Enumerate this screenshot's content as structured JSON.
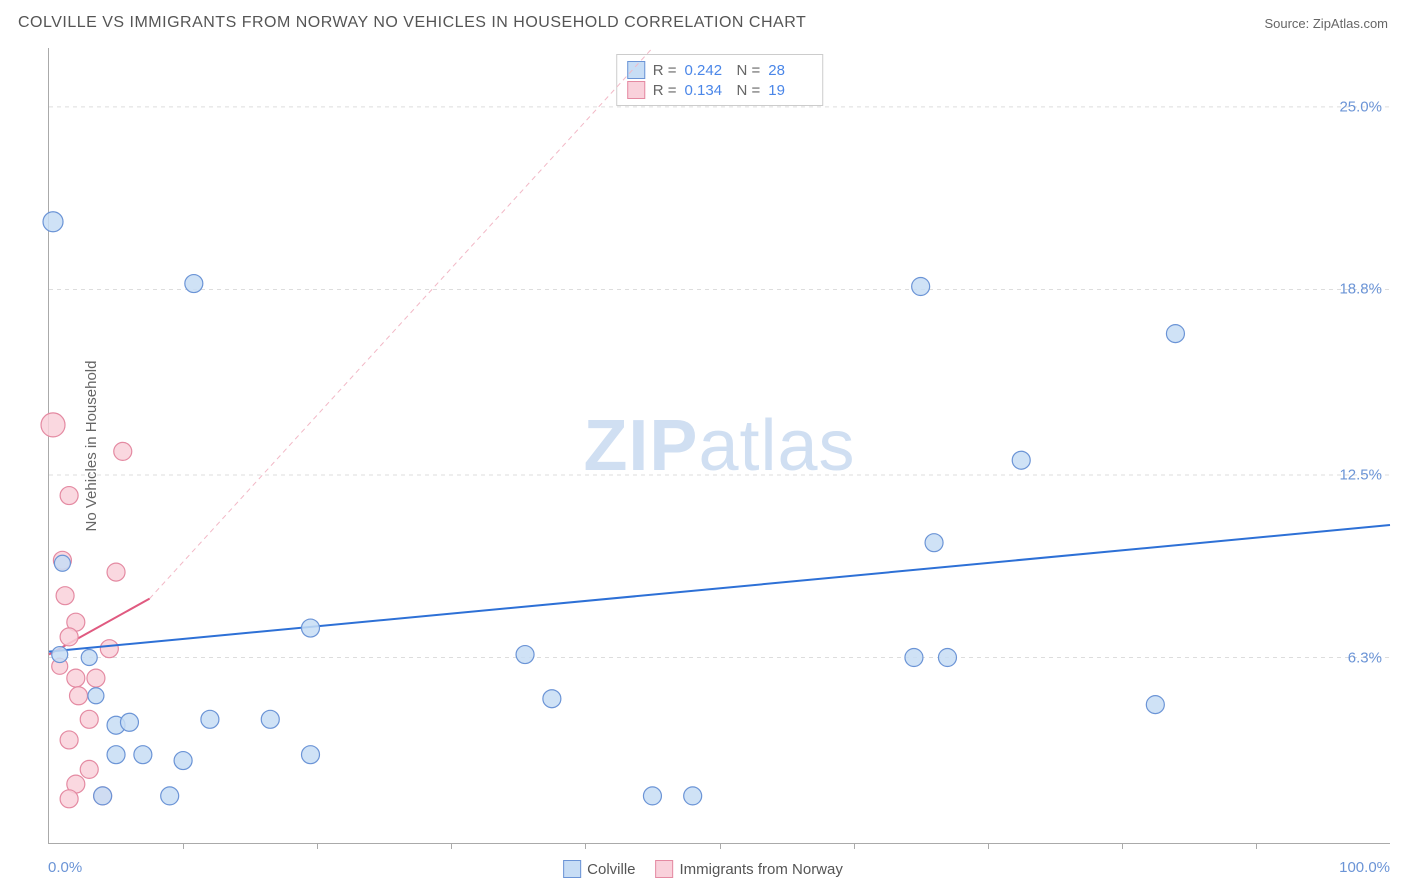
{
  "header": {
    "title": "COLVILLE VS IMMIGRANTS FROM NORWAY NO VEHICLES IN HOUSEHOLD CORRELATION CHART",
    "source": "Source: ZipAtlas.com"
  },
  "ylabel": "No Vehicles in Household",
  "watermark": {
    "a": "ZIP",
    "b": "atlas"
  },
  "chart": {
    "type": "scatter",
    "xlim": [
      0,
      100
    ],
    "ylim": [
      0,
      27
    ],
    "xaxis_labels": {
      "min": "0.0%",
      "max": "100.0%"
    },
    "ytick_values": [
      6.3,
      12.5,
      18.8,
      25.0
    ],
    "ytick_labels": [
      "6.3%",
      "12.5%",
      "18.8%",
      "25.0%"
    ],
    "xtick_positions_pct": [
      10,
      20,
      30,
      40,
      50,
      60,
      70,
      80,
      90
    ],
    "grid_color": "#dddddd",
    "axis_color": "#aaaaaa",
    "label_color": "#6b94d6",
    "background_color": "#ffffff",
    "series": [
      {
        "name": "Colville",
        "color_fill": "#c7ddf5",
        "color_stroke": "#6b94d6",
        "marker_radius": 9,
        "trend": {
          "x1": 0,
          "y1": 6.5,
          "x2": 100,
          "y2": 10.8,
          "color": "#2d70d6",
          "width": 2,
          "dash": "none"
        },
        "extrapolation": null,
        "R": "0.242",
        "N": "28",
        "points": [
          {
            "x": 0.3,
            "y": 21.1,
            "r": 10
          },
          {
            "x": 10.8,
            "y": 19.0,
            "r": 9
          },
          {
            "x": 65.0,
            "y": 18.9,
            "r": 9
          },
          {
            "x": 84.0,
            "y": 17.3,
            "r": 9
          },
          {
            "x": 72.5,
            "y": 13.0,
            "r": 9
          },
          {
            "x": 66.0,
            "y": 10.2,
            "r": 9
          },
          {
            "x": 1.0,
            "y": 9.5,
            "r": 8
          },
          {
            "x": 0.8,
            "y": 6.4,
            "r": 8
          },
          {
            "x": 3.0,
            "y": 6.3,
            "r": 8
          },
          {
            "x": 19.5,
            "y": 7.3,
            "r": 9
          },
          {
            "x": 35.5,
            "y": 6.4,
            "r": 9
          },
          {
            "x": 67.0,
            "y": 6.3,
            "r": 9
          },
          {
            "x": 64.5,
            "y": 6.3,
            "r": 9
          },
          {
            "x": 82.5,
            "y": 4.7,
            "r": 9
          },
          {
            "x": 37.5,
            "y": 4.9,
            "r": 9
          },
          {
            "x": 12.0,
            "y": 4.2,
            "r": 9
          },
          {
            "x": 16.5,
            "y": 4.2,
            "r": 9
          },
          {
            "x": 19.5,
            "y": 3.0,
            "r": 9
          },
          {
            "x": 5.0,
            "y": 4.0,
            "r": 9
          },
          {
            "x": 6.0,
            "y": 4.1,
            "r": 9
          },
          {
            "x": 7.0,
            "y": 3.0,
            "r": 9
          },
          {
            "x": 5.0,
            "y": 3.0,
            "r": 9
          },
          {
            "x": 10.0,
            "y": 2.8,
            "r": 9
          },
          {
            "x": 4.0,
            "y": 1.6,
            "r": 9
          },
          {
            "x": 9.0,
            "y": 1.6,
            "r": 9
          },
          {
            "x": 45.0,
            "y": 1.6,
            "r": 9
          },
          {
            "x": 48.0,
            "y": 1.6,
            "r": 9
          },
          {
            "x": 3.5,
            "y": 5.0,
            "r": 8
          }
        ]
      },
      {
        "name": "Immigrants from Norway",
        "color_fill": "#f9d1db",
        "color_stroke": "#e48aa2",
        "marker_radius": 9,
        "trend": {
          "x1": 0,
          "y1": 6.4,
          "x2": 7.5,
          "y2": 8.3,
          "color": "#e05a80",
          "width": 2,
          "dash": "none"
        },
        "extrapolation": {
          "x1": 7.5,
          "y1": 8.3,
          "x2": 45,
          "y2": 27.0,
          "color": "#f2b8c6",
          "width": 1,
          "dash": "5,4"
        },
        "R": "0.134",
        "N": "19",
        "points": [
          {
            "x": 0.3,
            "y": 14.2,
            "r": 12
          },
          {
            "x": 5.5,
            "y": 13.3,
            "r": 9
          },
          {
            "x": 1.5,
            "y": 11.8,
            "r": 9
          },
          {
            "x": 1.0,
            "y": 9.6,
            "r": 9
          },
          {
            "x": 5.0,
            "y": 9.2,
            "r": 9
          },
          {
            "x": 1.2,
            "y": 8.4,
            "r": 9
          },
          {
            "x": 2.0,
            "y": 7.5,
            "r": 9
          },
          {
            "x": 1.5,
            "y": 7.0,
            "r": 9
          },
          {
            "x": 4.5,
            "y": 6.6,
            "r": 9
          },
          {
            "x": 2.0,
            "y": 5.6,
            "r": 9
          },
          {
            "x": 3.5,
            "y": 5.6,
            "r": 9
          },
          {
            "x": 2.2,
            "y": 5.0,
            "r": 9
          },
          {
            "x": 3.0,
            "y": 4.2,
            "r": 9
          },
          {
            "x": 1.5,
            "y": 3.5,
            "r": 9
          },
          {
            "x": 3.0,
            "y": 2.5,
            "r": 9
          },
          {
            "x": 2.0,
            "y": 2.0,
            "r": 9
          },
          {
            "x": 1.5,
            "y": 1.5,
            "r": 9
          },
          {
            "x": 4.0,
            "y": 1.6,
            "r": 9
          },
          {
            "x": 0.8,
            "y": 6.0,
            "r": 8
          }
        ]
      }
    ]
  },
  "legend_bottom": [
    {
      "label": "Colville",
      "fill": "#c7ddf5",
      "stroke": "#6b94d6"
    },
    {
      "label": "Immigrants from Norway",
      "fill": "#f9d1db",
      "stroke": "#e48aa2"
    }
  ]
}
